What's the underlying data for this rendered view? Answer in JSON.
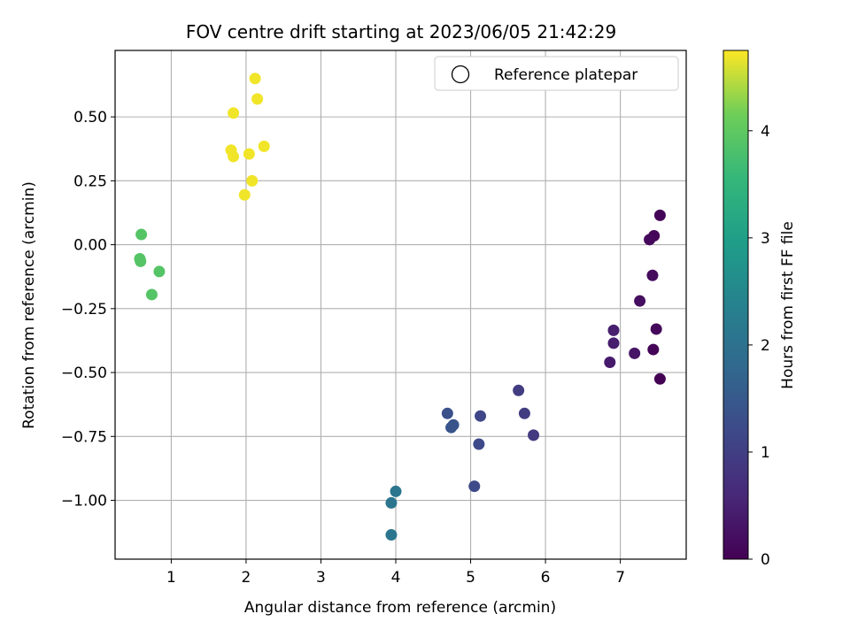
{
  "chart_data": {
    "type": "scatter",
    "title": "FOV centre drift starting at 2023/06/05 21:42:29",
    "xlabel": "Angular distance from reference (arcmin)",
    "ylabel": "Rotation from reference (arcmin)",
    "xlim": [
      0.25,
      7.88
    ],
    "ylim": [
      -1.23,
      0.76
    ],
    "xticks": [
      1,
      2,
      3,
      4,
      5,
      6,
      7
    ],
    "yticks": [
      0.5,
      0.25,
      0.0,
      -0.25,
      -0.5,
      -0.75,
      -1.0
    ],
    "ytick_labels": [
      "0.50",
      "0.25",
      "0.00",
      "−0.25",
      "−0.50",
      "−0.75",
      "−1.00"
    ],
    "grid": true,
    "legend": {
      "placement": "upper-right",
      "entries": [
        "Reference platepar"
      ]
    },
    "colorbar": {
      "label": "Hours from first FF file",
      "range": [
        0,
        4.75
      ],
      "ticks": [
        0,
        1,
        2,
        3,
        4
      ],
      "colormap": "viridis"
    },
    "points": [
      {
        "x": 7.53,
        "y": 0.115,
        "c": 0.05
      },
      {
        "x": 7.45,
        "y": 0.035,
        "c": 0.08
      },
      {
        "x": 7.39,
        "y": 0.02,
        "c": 0.12
      },
      {
        "x": 7.43,
        "y": -0.12,
        "c": 0.15
      },
      {
        "x": 7.26,
        "y": -0.22,
        "c": 0.2
      },
      {
        "x": 7.48,
        "y": -0.33,
        "c": 0.1
      },
      {
        "x": 7.44,
        "y": -0.41,
        "c": 0.05
      },
      {
        "x": 7.53,
        "y": -0.525,
        "c": 0.02
      },
      {
        "x": 7.19,
        "y": -0.425,
        "c": 0.3
      },
      {
        "x": 6.91,
        "y": -0.335,
        "c": 0.45
      },
      {
        "x": 6.91,
        "y": -0.385,
        "c": 0.42
      },
      {
        "x": 6.86,
        "y": -0.46,
        "c": 0.4
      },
      {
        "x": 5.64,
        "y": -0.57,
        "c": 0.95
      },
      {
        "x": 5.72,
        "y": -0.66,
        "c": 0.95
      },
      {
        "x": 5.84,
        "y": -0.745,
        "c": 0.9
      },
      {
        "x": 5.13,
        "y": -0.67,
        "c": 1.15
      },
      {
        "x": 5.11,
        "y": -0.78,
        "c": 1.2
      },
      {
        "x": 5.05,
        "y": -0.945,
        "c": 1.2
      },
      {
        "x": 4.69,
        "y": -0.66,
        "c": 1.35
      },
      {
        "x": 4.77,
        "y": -0.705,
        "c": 1.4
      },
      {
        "x": 4.74,
        "y": -0.715,
        "c": 1.4
      },
      {
        "x": 4.0,
        "y": -0.965,
        "c": 2.1
      },
      {
        "x": 3.94,
        "y": -1.01,
        "c": 2.1
      },
      {
        "x": 3.94,
        "y": -1.135,
        "c": 2.1
      },
      {
        "x": 0.6,
        "y": 0.04,
        "c": 3.9
      },
      {
        "x": 0.58,
        "y": -0.055,
        "c": 3.9
      },
      {
        "x": 0.59,
        "y": -0.065,
        "c": 3.9
      },
      {
        "x": 0.84,
        "y": -0.105,
        "c": 3.9
      },
      {
        "x": 0.74,
        "y": -0.195,
        "c": 3.9
      },
      {
        "x": 2.12,
        "y": 0.65,
        "c": 4.7
      },
      {
        "x": 2.15,
        "y": 0.57,
        "c": 4.7
      },
      {
        "x": 1.83,
        "y": 0.515,
        "c": 4.7
      },
      {
        "x": 1.8,
        "y": 0.37,
        "c": 4.7
      },
      {
        "x": 1.83,
        "y": 0.345,
        "c": 4.7
      },
      {
        "x": 2.04,
        "y": 0.355,
        "c": 4.7
      },
      {
        "x": 2.24,
        "y": 0.385,
        "c": 4.7
      },
      {
        "x": 2.08,
        "y": 0.25,
        "c": 4.7
      },
      {
        "x": 1.98,
        "y": 0.195,
        "c": 4.7
      }
    ]
  }
}
